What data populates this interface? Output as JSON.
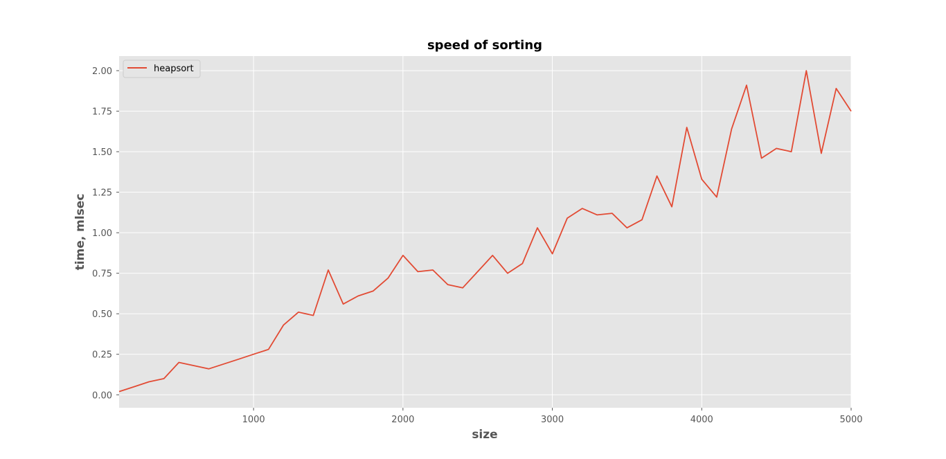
{
  "chart_data": {
    "type": "line",
    "title": "speed of sorting",
    "xlabel": "size",
    "ylabel": "time, mlsec",
    "xlim": [
      100,
      5000
    ],
    "ylim": [
      -0.08,
      2.09
    ],
    "xticks": [
      1000,
      2000,
      3000,
      4000,
      5000
    ],
    "yticks": [
      0.0,
      0.25,
      0.5,
      0.75,
      1.0,
      1.25,
      1.5,
      1.75,
      2.0
    ],
    "ytick_format": 2,
    "grid": true,
    "legend_position": "top-left",
    "background_color": "#e5e5e5",
    "grid_color": "#ffffff",
    "series": [
      {
        "name": "heapsort",
        "color": "#e24a33",
        "x": [
          100,
          200,
          300,
          400,
          500,
          600,
          700,
          800,
          900,
          1000,
          1100,
          1200,
          1300,
          1400,
          1500,
          1600,
          1700,
          1800,
          1900,
          2000,
          2100,
          2200,
          2300,
          2400,
          2500,
          2600,
          2700,
          2800,
          2900,
          3000,
          3100,
          3200,
          3300,
          3400,
          3500,
          3600,
          3700,
          3800,
          3900,
          4000,
          4100,
          4200,
          4300,
          4400,
          4500,
          4600,
          4700,
          4800,
          4900,
          5000
        ],
        "values": [
          0.02,
          0.05,
          0.08,
          0.1,
          0.2,
          0.18,
          0.16,
          0.19,
          0.22,
          0.25,
          0.28,
          0.43,
          0.51,
          0.49,
          0.77,
          0.56,
          0.61,
          0.64,
          0.72,
          0.86,
          0.76,
          0.77,
          0.68,
          0.66,
          0.76,
          0.86,
          0.75,
          0.81,
          1.03,
          0.87,
          1.09,
          1.15,
          1.11,
          1.12,
          1.03,
          1.08,
          1.35,
          1.16,
          1.65,
          1.33,
          1.22,
          1.64,
          1.91,
          1.46,
          1.52,
          1.5,
          2.0,
          1.49,
          1.89,
          1.75
        ]
      }
    ]
  }
}
